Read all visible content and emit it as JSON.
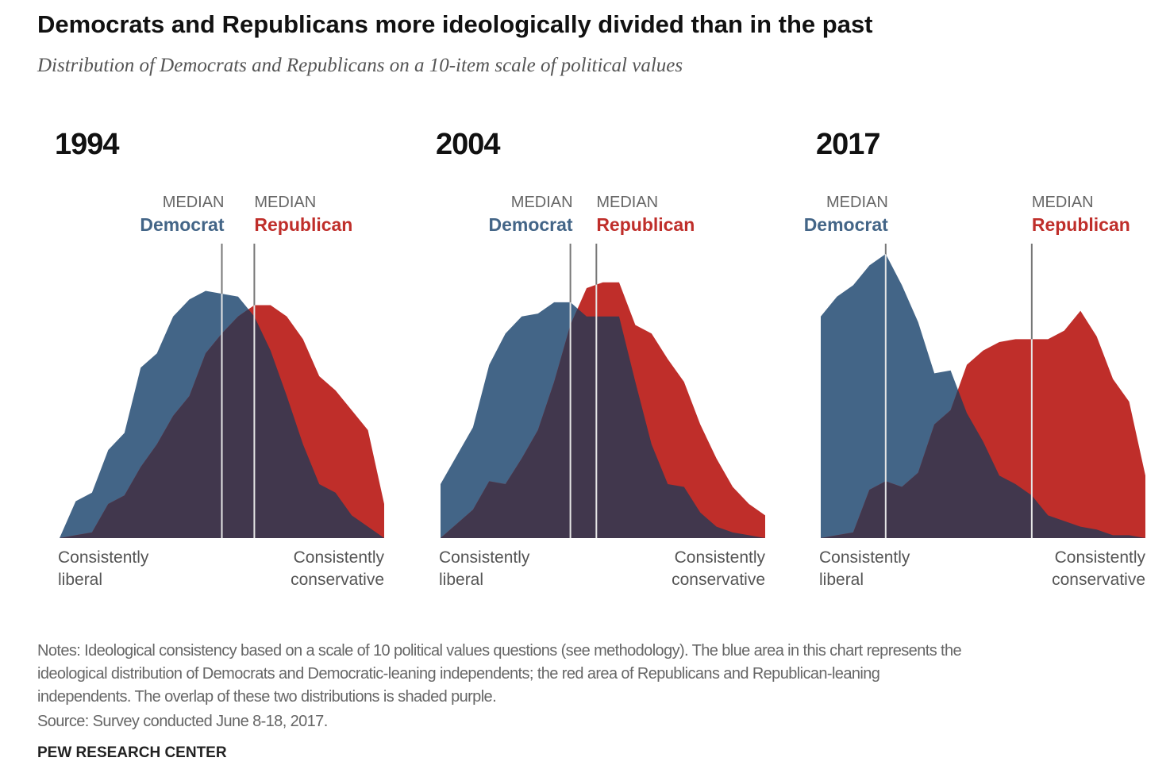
{
  "title": "Democrats and Republicans more ideologically divided than in the past",
  "subtitle": "Distribution of Democrats and Republicans on a 10-item scale of political values",
  "chart_data": [
    {
      "type": "area",
      "title": "1994",
      "x": [
        0,
        1,
        2,
        3,
        4,
        5,
        6,
        7,
        8,
        9,
        10,
        11,
        12,
        13,
        14,
        15,
        16,
        17,
        18,
        19,
        20
      ],
      "xlim": [
        0,
        20
      ],
      "ylim": [
        0,
        100
      ],
      "x_label_left": [
        "Consistently",
        "liberal"
      ],
      "x_label_right": [
        "Consistently",
        "conservative"
      ],
      "overlap_color": "#41374d",
      "series": [
        {
          "name": "Democrat",
          "color": "#436587",
          "median_label": "MEDIAN",
          "median": 10,
          "values": [
            0,
            13,
            16,
            31,
            37,
            60,
            65,
            78,
            84,
            87,
            86,
            85,
            78,
            66,
            50,
            33,
            19,
            16,
            8,
            4,
            0
          ]
        },
        {
          "name": "Republican",
          "color": "#bf2e2a",
          "median_label": "MEDIAN",
          "median": 12,
          "values": [
            0,
            1,
            2,
            12,
            15,
            25,
            33,
            43,
            50,
            65,
            72,
            78,
            82,
            82,
            78,
            70,
            57,
            52,
            45,
            38,
            12
          ]
        }
      ]
    },
    {
      "type": "area",
      "title": "2004",
      "x": [
        0,
        1,
        2,
        3,
        4,
        5,
        6,
        7,
        8,
        9,
        10,
        11,
        12,
        13,
        14,
        15,
        16,
        17,
        18,
        19,
        20
      ],
      "xlim": [
        0,
        20
      ],
      "ylim": [
        0,
        100
      ],
      "x_label_left": [
        "Consistently",
        "liberal"
      ],
      "x_label_right": [
        "Consistently",
        "conservative"
      ],
      "overlap_color": "#41374d",
      "series": [
        {
          "name": "Democrat",
          "color": "#436587",
          "median_label": "MEDIAN",
          "median": 8,
          "values": [
            19,
            29,
            39,
            61,
            72,
            78,
            79,
            83,
            83,
            78,
            78,
            78,
            55,
            33,
            19,
            18,
            9,
            4,
            2,
            1,
            0
          ]
        },
        {
          "name": "Republican",
          "color": "#bf2e2a",
          "median_label": "MEDIAN",
          "median": 9.6,
          "values": [
            0,
            5,
            10,
            20,
            19,
            28,
            38,
            55,
            75,
            88,
            90,
            90,
            75,
            72,
            63,
            55,
            40,
            28,
            18,
            12,
            8
          ]
        }
      ]
    },
    {
      "type": "area",
      "title": "2017",
      "x": [
        0,
        1,
        2,
        3,
        4,
        5,
        6,
        7,
        8,
        9,
        10,
        11,
        12,
        13,
        14,
        15,
        16,
        17,
        18,
        19,
        20
      ],
      "xlim": [
        0,
        20
      ],
      "ylim": [
        0,
        100
      ],
      "x_label_left": [
        "Consistently",
        "liberal"
      ],
      "x_label_right": [
        "Consistently",
        "conservative"
      ],
      "overlap_color": "#41374d",
      "series": [
        {
          "name": "Democrat",
          "color": "#436587",
          "median_label": "MEDIAN",
          "median": 4,
          "values": [
            78,
            85,
            89,
            96,
            100,
            89,
            76,
            58,
            59,
            44,
            34,
            22,
            19,
            15,
            8,
            6,
            4,
            3,
            1,
            1,
            0
          ]
        },
        {
          "name": "Republican",
          "color": "#bf2e2a",
          "median_label": "MEDIAN",
          "median": 13,
          "values": [
            0,
            1,
            2,
            17,
            20,
            18,
            23,
            40,
            45,
            61,
            66,
            69,
            70,
            70,
            70,
            73,
            80,
            71,
            56,
            48,
            22
          ]
        }
      ]
    }
  ],
  "notes": [
    "Notes: Ideological consistency based on a scale of 10 political values questions (see methodology). The blue area in this chart represents the",
    "ideological distribution of Democrats and Democratic-leaning independents; the red area of Republicans and Republican-leaning",
    "independents. The overlap of these two distributions is shaded purple."
  ],
  "source": "Source: Survey conducted June 8-18, 2017.",
  "footer": "PEW RESEARCH CENTER"
}
